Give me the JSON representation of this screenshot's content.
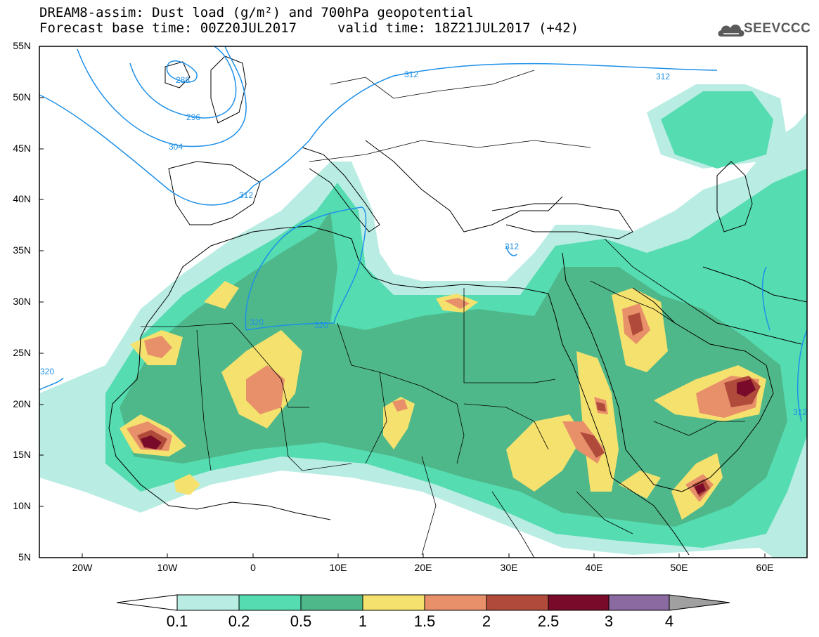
{
  "header": {
    "title_line1": "DREAM8-assim: Dust load (g/m²) and 700hPa geopotential",
    "title_line2": "Forecast base time: 00Z20JUL2017",
    "valid_time": "valid time: 18Z21JUL2017 (+42)"
  },
  "logo": {
    "text": "SEEVCCC",
    "icon": "cloud-icon"
  },
  "axes": {
    "lat_labels": [
      "55N",
      "50N",
      "45N",
      "40N",
      "35N",
      "30N",
      "25N",
      "20N",
      "15N",
      "10N",
      "5N"
    ],
    "lon_labels": [
      "20W",
      "10W",
      "0",
      "10E",
      "20E",
      "30E",
      "40E",
      "50E",
      "60E"
    ]
  },
  "contour_labels": [
    "288",
    "296",
    "304",
    "312",
    "312",
    "312",
    "312",
    "320",
    "320",
    "320",
    "312"
  ],
  "colorbar": {
    "labels": [
      "0.1",
      "0.2",
      "0.5",
      "1",
      "1.5",
      "2",
      "2.5",
      "3",
      "4"
    ],
    "colors": [
      "#ffffff",
      "#b9ede4",
      "#55dcb1",
      "#4fb88a",
      "#f5e16e",
      "#e8906a",
      "#b04a3a",
      "#7a0a2a",
      "#8a6aa0",
      "#a0a0a0"
    ]
  },
  "colors": {
    "contour": "#1e90e8",
    "c1": "#b9ede4",
    "c2": "#55dcb1",
    "c3": "#4fb88a",
    "c4": "#f5e16e",
    "c5": "#e8906a",
    "c6": "#b04a3a",
    "c7": "#7a0a2a"
  }
}
